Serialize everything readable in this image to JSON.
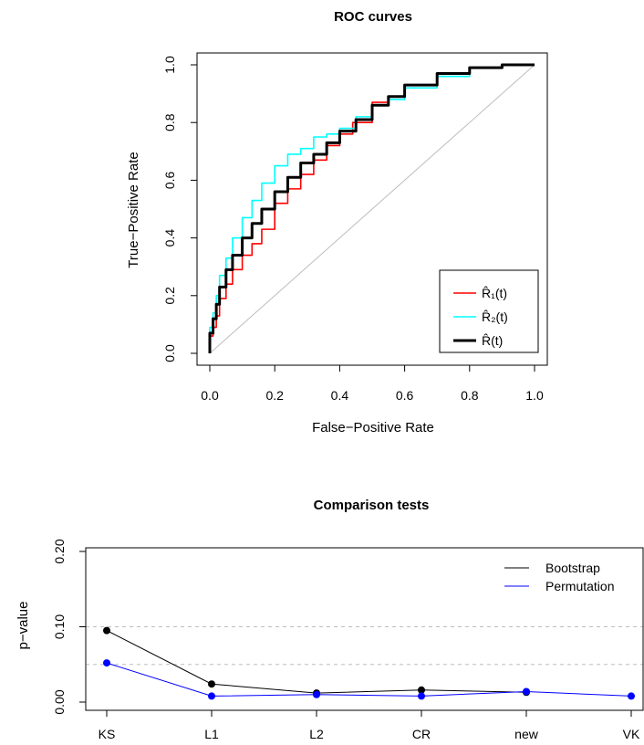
{
  "chart_data": [
    {
      "type": "line",
      "title": "ROC curves",
      "xlabel": "False−Positive Rate",
      "ylabel": "True−Positive Rate",
      "xlim": [
        0,
        1
      ],
      "ylim": [
        0,
        1
      ],
      "xticks": [
        "0.0",
        "0.2",
        "0.4",
        "0.6",
        "0.8",
        "1.0"
      ],
      "yticks": [
        "0.0",
        "0.2",
        "0.4",
        "0.6",
        "0.8",
        "1.0"
      ],
      "legend_position": "bottom-right",
      "reference_line": {
        "x": [
          0,
          1
        ],
        "y": [
          0,
          1
        ],
        "color": "#bebebe"
      },
      "series": [
        {
          "name": "R̂₁(t)",
          "color": "#ff0000",
          "x": [
            0,
            0.01,
            0.02,
            0.03,
            0.05,
            0.07,
            0.1,
            0.13,
            0.16,
            0.2,
            0.24,
            0.28,
            0.32,
            0.36,
            0.4,
            0.44,
            0.5,
            0.55,
            0.6,
            0.7,
            0.8,
            0.9,
            1.0
          ],
          "y": [
            0,
            0.06,
            0.09,
            0.13,
            0.19,
            0.24,
            0.29,
            0.34,
            0.38,
            0.43,
            0.52,
            0.57,
            0.62,
            0.67,
            0.72,
            0.76,
            0.8,
            0.87,
            0.89,
            0.93,
            0.97,
            0.99,
            1.0
          ]
        },
        {
          "name": "R̂₂(t)",
          "color": "#00ffff",
          "x": [
            0,
            0.01,
            0.02,
            0.03,
            0.05,
            0.07,
            0.1,
            0.13,
            0.16,
            0.2,
            0.24,
            0.28,
            0.32,
            0.36,
            0.4,
            0.45,
            0.5,
            0.55,
            0.6,
            0.7,
            0.8,
            0.9,
            1.0
          ],
          "y": [
            0,
            0.09,
            0.14,
            0.2,
            0.27,
            0.33,
            0.4,
            0.47,
            0.53,
            0.59,
            0.65,
            0.69,
            0.71,
            0.75,
            0.76,
            0.78,
            0.82,
            0.86,
            0.88,
            0.92,
            0.96,
            0.99,
            1.0
          ]
        },
        {
          "name": "R̂(t)",
          "color": "#000000",
          "x": [
            0,
            0.01,
            0.02,
            0.03,
            0.05,
            0.07,
            0.1,
            0.13,
            0.16,
            0.2,
            0.24,
            0.28,
            0.32,
            0.36,
            0.4,
            0.45,
            0.5,
            0.55,
            0.6,
            0.7,
            0.8,
            0.9,
            1.0
          ],
          "y": [
            0,
            0.07,
            0.12,
            0.17,
            0.23,
            0.29,
            0.34,
            0.4,
            0.45,
            0.5,
            0.56,
            0.61,
            0.66,
            0.69,
            0.73,
            0.77,
            0.81,
            0.86,
            0.89,
            0.93,
            0.97,
            0.99,
            1.0
          ]
        }
      ]
    },
    {
      "type": "line",
      "title": "Comparison tests",
      "xlabel": "",
      "ylabel": "p−value",
      "categories": [
        "KS",
        "L1",
        "L2",
        "CR",
        "new",
        "VK"
      ],
      "ylim": [
        0,
        0.2
      ],
      "yticks": [
        "0.00",
        "0.10",
        "0.20"
      ],
      "reference_lines": [
        0.05,
        0.1
      ],
      "legend_position": "top-right",
      "series": [
        {
          "name": "Bootstrap",
          "color": "#000000",
          "values": [
            0.095,
            0.024,
            0.012,
            0.016,
            0.013,
            null
          ]
        },
        {
          "name": "Permutation",
          "color": "#0000ff",
          "values": [
            0.052,
            0.008,
            0.01,
            0.008,
            0.014,
            0.008
          ]
        }
      ]
    }
  ]
}
